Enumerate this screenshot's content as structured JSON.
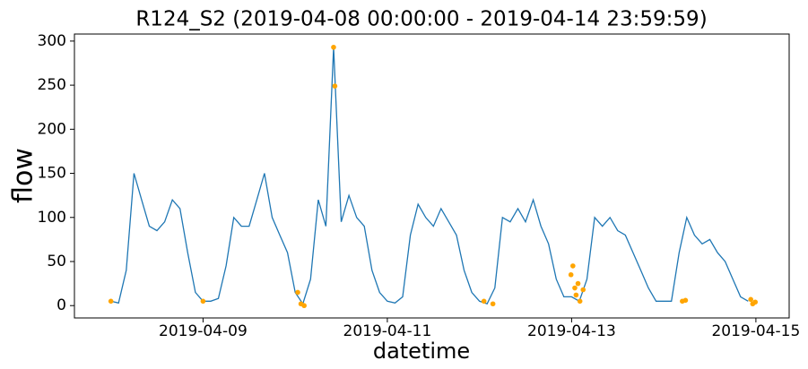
{
  "chart_data": {
    "type": "line",
    "title": "R124_S2 (2019-04-08 00:00:00 - 2019-04-14 23:59:59)",
    "xlabel": "datetime",
    "ylabel": "flow",
    "color": "#1f77b4",
    "x": [
      "2019-04-08 00:00",
      "2019-04-08 02:00",
      "2019-04-08 04:00",
      "2019-04-08 06:00",
      "2019-04-08 08:00",
      "2019-04-08 10:00",
      "2019-04-08 12:00",
      "2019-04-08 14:00",
      "2019-04-08 16:00",
      "2019-04-08 18:00",
      "2019-04-08 20:00",
      "2019-04-08 22:00",
      "2019-04-09 00:00",
      "2019-04-09 02:00",
      "2019-04-09 04:00",
      "2019-04-09 06:00",
      "2019-04-09 08:00",
      "2019-04-09 10:00",
      "2019-04-09 12:00",
      "2019-04-09 14:00",
      "2019-04-09 16:00",
      "2019-04-09 18:00",
      "2019-04-09 20:00",
      "2019-04-09 22:00",
      "2019-04-10 00:00",
      "2019-04-10 02:00",
      "2019-04-10 04:00",
      "2019-04-10 06:00",
      "2019-04-10 08:00",
      "2019-04-10 10:00",
      "2019-04-10 12:00",
      "2019-04-10 14:00",
      "2019-04-10 16:00",
      "2019-04-10 18:00",
      "2019-04-10 20:00",
      "2019-04-10 22:00",
      "2019-04-11 00:00",
      "2019-04-11 02:00",
      "2019-04-11 04:00",
      "2019-04-11 06:00",
      "2019-04-11 08:00",
      "2019-04-11 10:00",
      "2019-04-11 12:00",
      "2019-04-11 14:00",
      "2019-04-11 16:00",
      "2019-04-11 18:00",
      "2019-04-11 20:00",
      "2019-04-11 22:00",
      "2019-04-12 00:00",
      "2019-04-12 02:00",
      "2019-04-12 04:00",
      "2019-04-12 06:00",
      "2019-04-12 08:00",
      "2019-04-12 10:00",
      "2019-04-12 12:00",
      "2019-04-12 14:00",
      "2019-04-12 16:00",
      "2019-04-12 18:00",
      "2019-04-12 20:00",
      "2019-04-12 22:00",
      "2019-04-13 00:00",
      "2019-04-13 02:00",
      "2019-04-13 04:00",
      "2019-04-13 06:00",
      "2019-04-13 08:00",
      "2019-04-13 10:00",
      "2019-04-13 12:00",
      "2019-04-13 14:00",
      "2019-04-13 16:00",
      "2019-04-13 18:00",
      "2019-04-13 20:00",
      "2019-04-13 22:00",
      "2019-04-14 00:00",
      "2019-04-14 02:00",
      "2019-04-14 04:00",
      "2019-04-14 06:00",
      "2019-04-14 08:00",
      "2019-04-14 10:00",
      "2019-04-14 12:00",
      "2019-04-14 14:00",
      "2019-04-14 16:00",
      "2019-04-14 18:00",
      "2019-04-14 20:00",
      "2019-04-14 22:00"
    ],
    "values": [
      5,
      3,
      40,
      150,
      120,
      90,
      85,
      95,
      120,
      110,
      60,
      15,
      5,
      5,
      8,
      45,
      100,
      90,
      90,
      120,
      150,
      100,
      80,
      60,
      15,
      2,
      30,
      120,
      90,
      293,
      95,
      125,
      100,
      90,
      40,
      15,
      5,
      3,
      10,
      80,
      115,
      100,
      90,
      110,
      95,
      80,
      40,
      15,
      5,
      2,
      20,
      100,
      95,
      110,
      95,
      120,
      90,
      70,
      30,
      10,
      10,
      5,
      30,
      100,
      90,
      100,
      85,
      80,
      60,
      40,
      20,
      5,
      5,
      5,
      60,
      100,
      80,
      70,
      75,
      60,
      50,
      30,
      10,
      5
    ],
    "anomalies": {
      "color": "orange",
      "x": [
        "2019-04-08 00:00",
        "2019-04-09 00:00",
        "2019-04-10 00:40",
        "2019-04-10 01:30",
        "2019-04-10 02:20",
        "2019-04-10 10:00",
        "2019-04-10 10:20",
        "2019-04-12 01:10",
        "2019-04-12 03:30",
        "2019-04-12 23:50",
        "2019-04-13 00:20",
        "2019-04-13 00:50",
        "2019-04-13 01:10",
        "2019-04-13 01:40",
        "2019-04-13 02:10",
        "2019-04-13 03:00",
        "2019-04-14 04:50",
        "2019-04-14 05:40",
        "2019-04-14 22:40",
        "2019-04-14 23:10",
        "2019-04-14 23:50"
      ],
      "values": [
        5,
        5,
        15,
        2,
        0,
        293,
        249,
        5,
        2,
        35,
        45,
        20,
        12,
        25,
        5,
        18,
        5,
        6,
        7,
        2,
        4
      ]
    },
    "xlim": [
      "2019-04-07 14:30",
      "2019-04-15 08:40"
    ],
    "xticks": [
      "2019-04-09",
      "2019-04-11",
      "2019-04-13",
      "2019-04-15"
    ],
    "ylim": [
      -14,
      308
    ],
    "yticks": [
      0,
      50,
      100,
      150,
      200,
      250,
      300
    ]
  }
}
